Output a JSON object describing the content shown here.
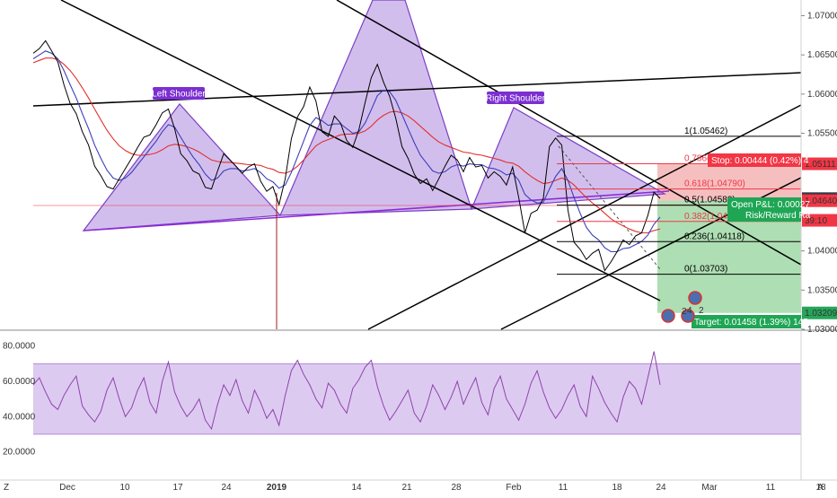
{
  "chart_data": {
    "type": "line",
    "main_panel": {
      "y_ticks": [
        "1.07000",
        "1.06500",
        "1.06000",
        "1.05500",
        "1.04000",
        "1.03500",
        "1.03000"
      ],
      "ylim": [
        1.03,
        1.072
      ],
      "series_price": [
        1.0652,
        1.0658,
        1.0668,
        1.0655,
        1.0641,
        1.0612,
        1.0588,
        1.0575,
        1.0552,
        1.0535,
        1.0508,
        1.0496,
        1.0482,
        1.0479,
        1.0492,
        1.0505,
        1.0518,
        1.0532,
        1.0545,
        1.0548,
        1.0561,
        1.0576,
        1.0581,
        1.0556,
        1.0524,
        1.0515,
        1.0502,
        1.0498,
        1.0481,
        1.0479,
        1.0502,
        1.0524,
        1.0516,
        1.0508,
        1.0499,
        1.0507,
        1.0511,
        1.0489,
        1.0476,
        1.0482,
        1.0459,
        1.0492,
        1.0543,
        1.0571,
        1.0584,
        1.0609,
        1.0591,
        1.0552,
        1.0546,
        1.0572,
        1.0563,
        1.0541,
        1.0532,
        1.0555,
        1.0589,
        1.0621,
        1.0638,
        1.0615,
        1.0597,
        1.0569,
        1.0533,
        1.0518,
        1.0498,
        1.0486,
        1.0492,
        1.0477,
        1.0492,
        1.0508,
        1.0522,
        1.0516,
        1.0501,
        1.0519,
        1.0507,
        1.0509,
        1.0493,
        1.0501,
        1.0495,
        1.0484,
        1.0507,
        1.0468,
        1.0423,
        1.0448,
        1.0452,
        1.0467,
        1.0533,
        1.0544,
        1.0535,
        1.0452,
        1.0411,
        1.0402,
        1.0389,
        1.0397,
        1.0402,
        1.0375,
        1.0386,
        1.0399,
        1.0414,
        1.0408,
        1.0419,
        1.0423,
        1.0445,
        1.0475,
        1.0467
      ],
      "series_ma_fast": [
        1.0645,
        1.065,
        1.0655,
        1.0652,
        1.0645,
        1.063,
        1.0612,
        1.0595,
        1.0575,
        1.0556,
        1.0535,
        1.0518,
        1.0503,
        1.0493,
        1.049,
        1.0493,
        1.05,
        1.051,
        1.052,
        1.053,
        1.054,
        1.0552,
        1.0561,
        1.0558,
        1.0545,
        1.0532,
        1.052,
        1.051,
        1.0498,
        1.049,
        1.0493,
        1.0502,
        1.0505,
        1.0505,
        1.0502,
        1.0503,
        1.0505,
        1.05,
        1.0492,
        1.0488,
        1.048,
        1.0484,
        1.05,
        1.052,
        1.054,
        1.056,
        1.057,
        1.0566,
        1.056,
        1.0562,
        1.0562,
        1.0556,
        1.055,
        1.0552,
        1.0563,
        1.058,
        1.0598,
        1.0605,
        1.0603,
        1.0592,
        1.0574,
        1.0556,
        1.0538,
        1.0522,
        1.0512,
        1.0502,
        1.0499,
        1.0501,
        1.0507,
        1.051,
        1.0508,
        1.0511,
        1.051,
        1.051,
        1.0506,
        1.0505,
        1.0502,
        1.0497,
        1.0499,
        1.049,
        1.0472,
        1.0465,
        1.0461,
        1.0462,
        1.0479,
        1.0495,
        1.0505,
        1.049,
        1.0468,
        1.0448,
        1.043,
        1.042,
        1.0414,
        1.0404,
        1.0399,
        1.0399,
        1.0403,
        1.0404,
        1.0408,
        1.0412,
        1.042,
        1.0434,
        1.0443
      ],
      "series_ma_slow": [
        1.064,
        1.0643,
        1.0646,
        1.0646,
        1.0644,
        1.0638,
        1.063,
        1.062,
        1.0608,
        1.0595,
        1.0581,
        1.0567,
        1.0554,
        1.0543,
        1.0534,
        1.0528,
        1.0524,
        1.0522,
        1.0522,
        1.0523,
        1.0525,
        1.0529,
        1.0534,
        1.0536,
        1.0535,
        1.0533,
        1.053,
        1.0526,
        1.0521,
        1.0516,
        1.0514,
        1.0513,
        1.0513,
        1.0512,
        1.0511,
        1.051,
        1.051,
        1.0509,
        1.0506,
        1.0504,
        1.05,
        1.0499,
        1.0502,
        1.0508,
        1.0516,
        1.0525,
        1.0534,
        1.0539,
        1.0542,
        1.0545,
        1.0548,
        1.0549,
        1.0549,
        1.055,
        1.0553,
        1.0559,
        1.0567,
        1.0573,
        1.0577,
        1.0578,
        1.0576,
        1.0572,
        1.0566,
        1.0559,
        1.0552,
        1.0545,
        1.0539,
        1.0535,
        1.0532,
        1.0529,
        1.0526,
        1.0525,
        1.0523,
        1.0522,
        1.052,
        1.0518,
        1.0516,
        1.0513,
        1.0512,
        1.0508,
        1.0501,
        1.0495,
        1.049,
        1.0486,
        1.0487,
        1.049,
        1.0493,
        1.049,
        1.0484,
        1.0476,
        1.0468,
        1.0461,
        1.0455,
        1.0448,
        1.0441,
        1.0436,
        1.0432,
        1.0428,
        1.0425,
        1.0423,
        1.0423,
        1.0426,
        1.0428
      ],
      "price_axis_labels": [
        {
          "text": "1.05111",
          "value": 1.05111,
          "color": "#f23645"
        },
        {
          "text": "1.04667",
          "value": 1.04667,
          "color": "#363a45"
        },
        {
          "text": "1.04640",
          "value": 1.0464,
          "color": "#f23645"
        },
        {
          "text": "39:10",
          "value": 1.0439,
          "color": "#f23645"
        },
        {
          "text": "1.03209",
          "value": 1.03209,
          "color": "#26a65b"
        }
      ],
      "fib_levels": [
        {
          "label": "1(1.05462)",
          "value": 1.05462,
          "color": "#000000"
        },
        {
          "label": "0.786(1.05111)",
          "value": 1.05111,
          "color": "#f23645"
        },
        {
          "label": "0.618(1.04790)",
          "value": 1.0479,
          "color": "#f23645"
        },
        {
          "label": "0.5(1.04583)",
          "value": 1.04583,
          "color": "#000000"
        },
        {
          "label": "0.382(1.04376)",
          "value": 1.04376,
          "color": "#f23645"
        },
        {
          "label": "0.236(1.04118)",
          "value": 1.04118,
          "color": "#000000"
        },
        {
          "label": "0(1.03703)",
          "value": 1.03703,
          "color": "#000000"
        }
      ],
      "annotations": {
        "left_shoulder": "Left Shoulder",
        "right_shoulder": "Right Shoulder",
        "stop": "Stop: 0.00444 (0.42%) 4",
        "pnl": "Open P&L: 0.00027",
        "rr": "Risk/Reward Ra",
        "target": "Target: 0.01458 (1.39%) 145"
      },
      "event_badges": [
        "2",
        "4",
        "2"
      ]
    },
    "oscillator_panel": {
      "y_ticks": [
        "80.0000",
        "60.0000",
        "40.0000",
        "20.0000"
      ],
      "ylim": [
        5,
        87
      ],
      "band": [
        30,
        70
      ],
      "series_rsi": [
        58,
        62,
        54,
        47,
        44,
        52,
        58,
        63,
        46,
        41,
        37,
        43,
        55,
        62,
        50,
        40,
        45,
        55,
        62,
        48,
        42,
        60,
        71,
        54,
        46,
        40,
        44,
        50,
        38,
        33,
        47,
        58,
        52,
        61,
        49,
        42,
        55,
        48,
        39,
        44,
        35,
        52,
        66,
        72,
        64,
        58,
        50,
        45,
        59,
        55,
        47,
        42,
        56,
        61,
        68,
        72,
        57,
        46,
        38,
        43,
        49,
        55,
        42,
        37,
        46,
        58,
        52,
        44,
        51,
        60,
        47,
        55,
        62,
        48,
        41,
        56,
        63,
        50,
        44,
        38,
        47,
        59,
        66,
        54,
        45,
        39,
        44,
        52,
        58,
        46,
        40,
        63,
        56,
        48,
        42,
        37,
        51,
        60,
        56,
        47,
        62,
        77,
        58
      ]
    },
    "x_ticks": [
      "Dec",
      "10",
      "17",
      "24",
      "2019",
      "14",
      "21",
      "28",
      "Feb",
      "11",
      "18",
      "24",
      "Mar",
      "11",
      "18"
    ]
  },
  "corner_labels": {
    "left": "Z",
    "right": "A"
  },
  "colors": {
    "price": "#000000",
    "ma_fast": "#3a3fb8",
    "ma_slow": "#e0312c",
    "pattern_fill": "#9c6fd6",
    "rsi": "#8e44ad",
    "stop_zone": "#f5b4b4",
    "target_zone": "#93d39a"
  }
}
